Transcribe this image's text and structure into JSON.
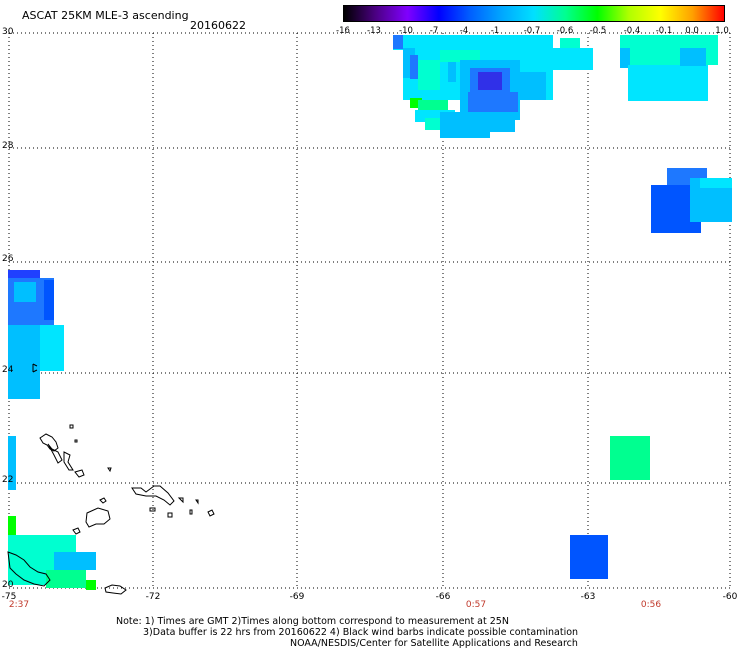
{
  "header": {
    "title": "ASCAT 25KM MLE-3 ascending",
    "date": "20160622"
  },
  "colorbar": {
    "labels": [
      "-16",
      "-13",
      "-10",
      "-7",
      "-4",
      "-1",
      "-0.7",
      "-0.6",
      "-0.5",
      "-0.4",
      "-0.1",
      "0.0",
      "1.0"
    ],
    "colors": [
      "#000000",
      "#4b0082",
      "#8000ff",
      "#0000ff",
      "#0060ff",
      "#00a8ff",
      "#00e0ff",
      "#00ff90",
      "#00ff00",
      "#b0ff00",
      "#ffff00",
      "#ffa000",
      "#ff0000"
    ]
  },
  "axes": {
    "x_ticks": [
      "-75",
      "-72",
      "-69",
      "-66",
      "-63",
      "-60"
    ],
    "y_ticks": [
      "30",
      "28",
      "26",
      "24",
      "22",
      "20"
    ],
    "x_range": [
      -75,
      -60
    ],
    "y_range": [
      20,
      30
    ]
  },
  "time_labels": [
    "2:37",
    "0:57",
    "0:56"
  ],
  "notes": [
    "Note: 1) Times are GMT 2)Times along bottom correspond to measurement at 25N",
    "3)Data buffer is 22 hrs from 20160622 4) Black wind barbs indicate possible contamination",
    "NOAA/NESDIS/Center for Satellite Applications and Research"
  ],
  "palette": {
    "dark_blue": "#0055ff",
    "blue": "#1e78ff",
    "light_blue": "#00bfff",
    "cyan": "#00e5ff",
    "aqua": "#00ffd0",
    "sea_green": "#00ff90",
    "green": "#00ff00",
    "deep_blue": "#2040ff",
    "indigo": "#3030e8"
  }
}
